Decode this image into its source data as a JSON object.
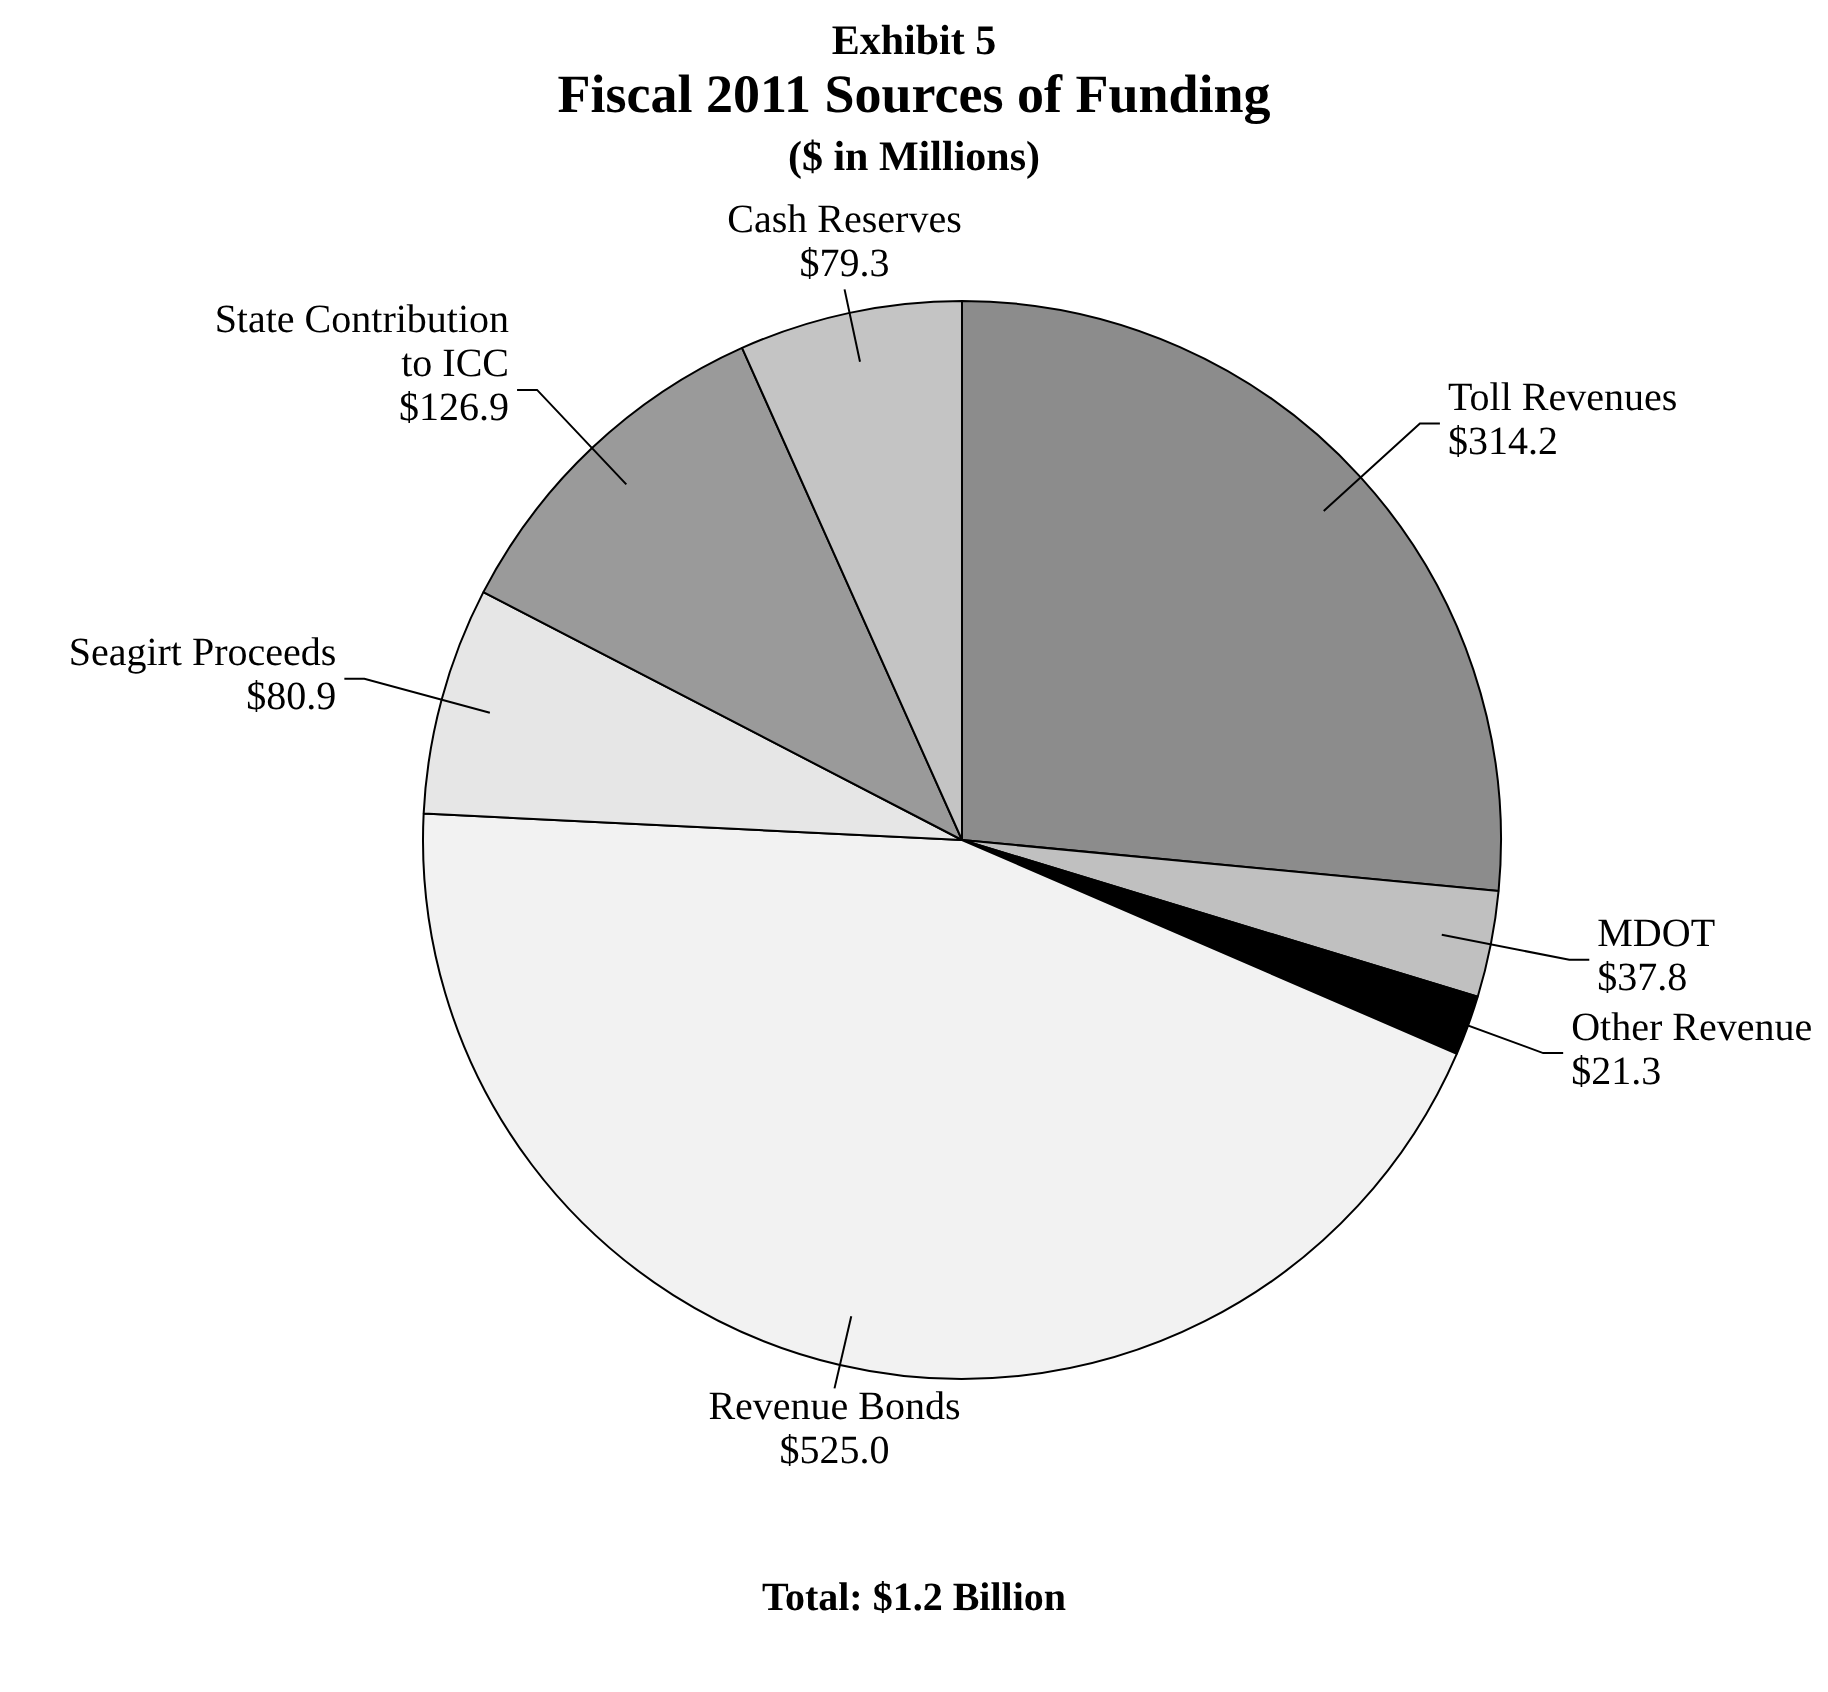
{
  "chart_data": {
    "type": "pie",
    "title": "Fiscal 2011 Sources of Funding",
    "subtitle": "($ in Millions)",
    "annotations": [
      "Exhibit 5",
      "Total:  $1.2 Billion"
    ],
    "categories": [
      "Toll Revenues",
      "MDOT",
      "Other Revenue",
      "Revenue Bonds",
      "Seagirt Proceeds",
      "State Contribution to ICC",
      "Cash Reserves"
    ],
    "values": [
      314.2,
      37.8,
      21.3,
      525.0,
      80.9,
      126.9,
      79.3
    ],
    "value_labels": [
      "$314.2",
      "$37.8",
      "$21.3",
      "$525.0",
      "$80.9",
      "$126.9",
      "$79.3"
    ],
    "colors": [
      "#8c8c8c",
      "#c0c0c0",
      "#000000",
      "#f2f2f2",
      "#e6e6e6",
      "#9a9a9a",
      "#c4c4c4"
    ],
    "legend": false
  }
}
